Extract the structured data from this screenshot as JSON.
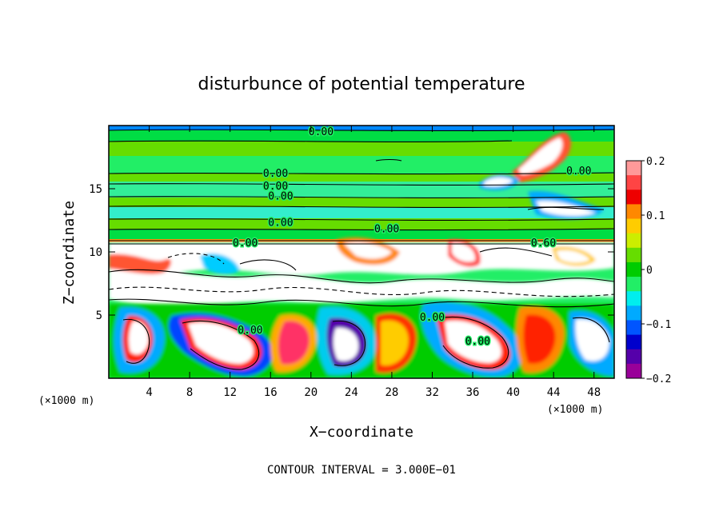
{
  "chart_data": {
    "type": "heatmap",
    "title": "disturbunce of potential temperature",
    "xlabel": "X−coordinate",
    "ylabel": "Z−coordinate",
    "x_unit": "(×1000 m)",
    "x_unit_right": "(×1000 m)",
    "xlim": [
      0,
      50
    ],
    "ylim": [
      0,
      20
    ],
    "x_ticks": [
      4,
      8,
      12,
      16,
      20,
      24,
      28,
      32,
      36,
      40,
      44,
      48
    ],
    "y_ticks": [
      5,
      10,
      15
    ],
    "tropopause_z": 10.8,
    "colorbar": {
      "range": [
        -0.2,
        0.2
      ],
      "ticks": [
        "0.2",
        "0.1",
        "0",
        "−0.1",
        "−0.2"
      ],
      "colors": [
        "#ff9999",
        "#ff4444",
        "#ee0000",
        "#ff8800",
        "#ffcc00",
        "#ccee00",
        "#66dd00",
        "#00cc00",
        "#22ee66",
        "#00eeee",
        "#00aaff",
        "#0055ff",
        "#0000cc",
        "#5500aa",
        "#990099"
      ]
    },
    "contour_interval": "CONTOUR INTERVAL = 3.000E−01",
    "contour_labels": [
      {
        "text": "0.00",
        "x": 21,
        "z": 19.5
      },
      {
        "text": "0.00",
        "x": 16.5,
        "z": 16.2
      },
      {
        "text": "0.00",
        "x": 16.5,
        "z": 15.2
      },
      {
        "text": "0.00",
        "x": 17,
        "z": 14.4
      },
      {
        "text": "0.00",
        "x": 17,
        "z": 12.3
      },
      {
        "text": "0.00",
        "x": 27.5,
        "z": 11.8
      },
      {
        "text": "0.00",
        "x": 46.5,
        "z": 16.4
      },
      {
        "text": "0.00",
        "x": 13.5,
        "z": 10.7
      },
      {
        "text": "0.60",
        "x": 43,
        "z": 10.7
      },
      {
        "text": "0.00",
        "x": 14,
        "z": 3.8
      },
      {
        "text": "0.00",
        "x": 32,
        "z": 4.8
      },
      {
        "text": "0.00",
        "x": 36.5,
        "z": 2.9
      }
    ]
  },
  "footer": {
    "contour_interval_text": "CONTOUR INTERVAL = 3.000E−01"
  }
}
